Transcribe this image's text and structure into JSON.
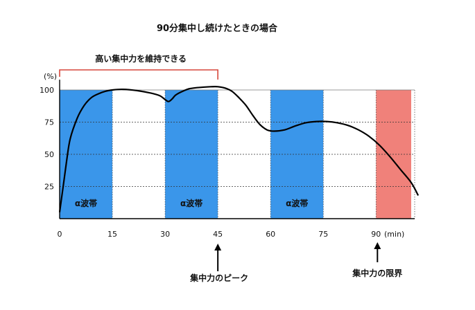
{
  "chart_data": {
    "type": "line",
    "title": "90分集中し続けたときの場合",
    "ylabel": "(%)",
    "xlabel": "(min)",
    "xlim": [
      0,
      100
    ],
    "ylim": [
      0,
      100
    ],
    "x_ticks": [
      0,
      15,
      30,
      45,
      60,
      75,
      90
    ],
    "y_ticks": [
      25,
      50,
      75,
      100
    ],
    "grid": "horizontal dotted at 25, 50, 75",
    "bands": [
      {
        "from": 0,
        "to": 15,
        "label": "α波帯",
        "color": "#3a96ea"
      },
      {
        "from": 30,
        "to": 45,
        "label": "α波帯",
        "color": "#3a96ea"
      },
      {
        "from": 60,
        "to": 75,
        "label": "α波帯",
        "color": "#3a96ea"
      },
      {
        "from": 90,
        "to": 100,
        "label": "",
        "color": "#f0817a"
      }
    ],
    "series": [
      {
        "color": "#000000",
        "points": [
          [
            0,
            5
          ],
          [
            1,
            25
          ],
          [
            2,
            45
          ],
          [
            3,
            62
          ],
          [
            5,
            78
          ],
          [
            7,
            88
          ],
          [
            9,
            94
          ],
          [
            11,
            97
          ],
          [
            13,
            99
          ],
          [
            15,
            100
          ],
          [
            18,
            100.5
          ],
          [
            22,
            99.5
          ],
          [
            26,
            97.5
          ],
          [
            28.5,
            95.5
          ],
          [
            30,
            92.5
          ],
          [
            31,
            91
          ],
          [
            32,
            93
          ],
          [
            33,
            96
          ],
          [
            35,
            99
          ],
          [
            37,
            101
          ],
          [
            40,
            102
          ],
          [
            43,
            102.5
          ],
          [
            45,
            102.5
          ],
          [
            47,
            101.5
          ],
          [
            49,
            99
          ],
          [
            51,
            94
          ],
          [
            53,
            88
          ],
          [
            55,
            80
          ],
          [
            57,
            73
          ],
          [
            59,
            69
          ],
          [
            61,
            68
          ],
          [
            64,
            69
          ],
          [
            67,
            72
          ],
          [
            70,
            74.5
          ],
          [
            73,
            75.5
          ],
          [
            76,
            75.5
          ],
          [
            79,
            74.5
          ],
          [
            82,
            72.5
          ],
          [
            85,
            69
          ],
          [
            88,
            64
          ],
          [
            91,
            57
          ],
          [
            94,
            48
          ],
          [
            97,
            38
          ],
          [
            100,
            28
          ],
          [
            102,
            18
          ]
        ]
      }
    ],
    "annotations": {
      "bracket": {
        "from": 0,
        "to": 45,
        "label": "高い集中力を維持できる",
        "color": "#d6473b"
      },
      "peak": {
        "x": 45,
        "label": "集中力のピーク"
      },
      "limit": {
        "x": 90,
        "label": "集中力の限界"
      }
    }
  }
}
